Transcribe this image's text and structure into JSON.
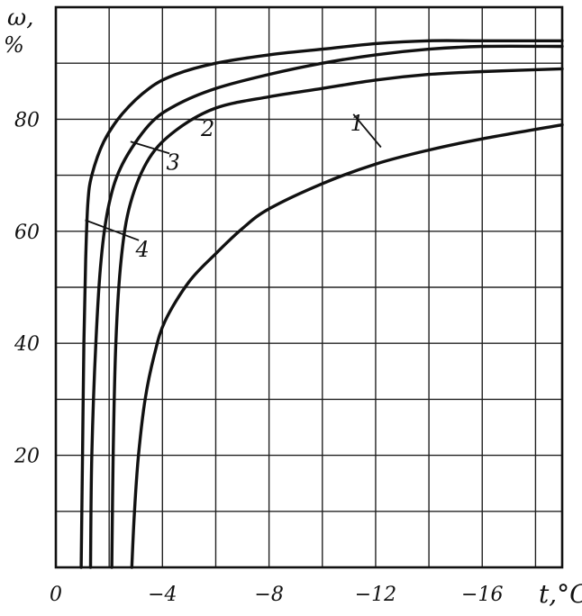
{
  "chart_data": {
    "type": "line",
    "title": "",
    "ylabel_symbol": "ω,",
    "ylabel_unit": "%",
    "xlabel": "t,°C",
    "xlim": [
      0,
      -19
    ],
    "ylim": [
      0,
      100
    ],
    "grid": true,
    "x_ticks": [
      0,
      -4,
      -8,
      -12,
      -16
    ],
    "x_tick_labels": [
      "0",
      "−4",
      "−8",
      "−12",
      "−16"
    ],
    "y_ticks": [
      20,
      40,
      60,
      80
    ],
    "y_tick_labels": [
      "20",
      "40",
      "60",
      "80"
    ],
    "series": [
      {
        "name": "1",
        "label_at": [
          -11.3,
          78
        ],
        "leader_to": [
          -12.2,
          75
        ],
        "points": [
          [
            -2.85,
            0
          ],
          [
            -2.95,
            10
          ],
          [
            -3.1,
            20
          ],
          [
            -3.35,
            30
          ],
          [
            -3.7,
            38
          ],
          [
            -4.1,
            44
          ],
          [
            -5,
            51
          ],
          [
            -6,
            56
          ],
          [
            -7,
            60.5
          ],
          [
            -8,
            64
          ],
          [
            -10,
            68.5
          ],
          [
            -12,
            72
          ],
          [
            -14,
            74.5
          ],
          [
            -16,
            76.5
          ],
          [
            -19,
            79
          ]
        ]
      },
      {
        "name": "2",
        "label_at": [
          -5.7,
          77
        ],
        "leader_to": [
          -5.15,
          80
        ],
        "points": [
          [
            -2.1,
            0
          ],
          [
            -2.15,
            20
          ],
          [
            -2.25,
            40
          ],
          [
            -2.45,
            55
          ],
          [
            -2.8,
            65
          ],
          [
            -3.5,
            73
          ],
          [
            -4.5,
            78
          ],
          [
            -6,
            82
          ],
          [
            -8,
            84
          ],
          [
            -10,
            85.5
          ],
          [
            -12,
            87
          ],
          [
            -14,
            88
          ],
          [
            -16,
            88.5
          ],
          [
            -19,
            89
          ]
        ]
      },
      {
        "name": "3",
        "label_at": [
          -4.4,
          71
        ],
        "leader_to": [
          -2.8,
          76
        ],
        "points": [
          [
            -1.3,
            0
          ],
          [
            -1.35,
            20
          ],
          [
            -1.5,
            40
          ],
          [
            -1.7,
            55
          ],
          [
            -2,
            65
          ],
          [
            -2.5,
            72
          ],
          [
            -3.5,
            79
          ],
          [
            -4.5,
            82.5
          ],
          [
            -6,
            85.5
          ],
          [
            -8,
            88
          ],
          [
            -10,
            90
          ],
          [
            -12,
            91.5
          ],
          [
            -14,
            92.5
          ],
          [
            -16,
            93
          ],
          [
            -19,
            93
          ]
        ]
      },
      {
        "name": "4",
        "label_at": [
          -3.25,
          55.5
        ],
        "leader_to": [
          -1.1,
          62
        ],
        "points": [
          [
            -0.95,
            0
          ],
          [
            -1,
            20
          ],
          [
            -1.05,
            40
          ],
          [
            -1.12,
            55
          ],
          [
            -1.2,
            65
          ],
          [
            -1.35,
            70
          ],
          [
            -1.8,
            76
          ],
          [
            -2.5,
            81
          ],
          [
            -3.5,
            85.5
          ],
          [
            -4.5,
            88
          ],
          [
            -6,
            90
          ],
          [
            -8,
            91.5
          ],
          [
            -10,
            92.5
          ],
          [
            -12,
            93.5
          ],
          [
            -14,
            94
          ],
          [
            -16,
            94
          ],
          [
            -19,
            94
          ]
        ]
      }
    ]
  }
}
